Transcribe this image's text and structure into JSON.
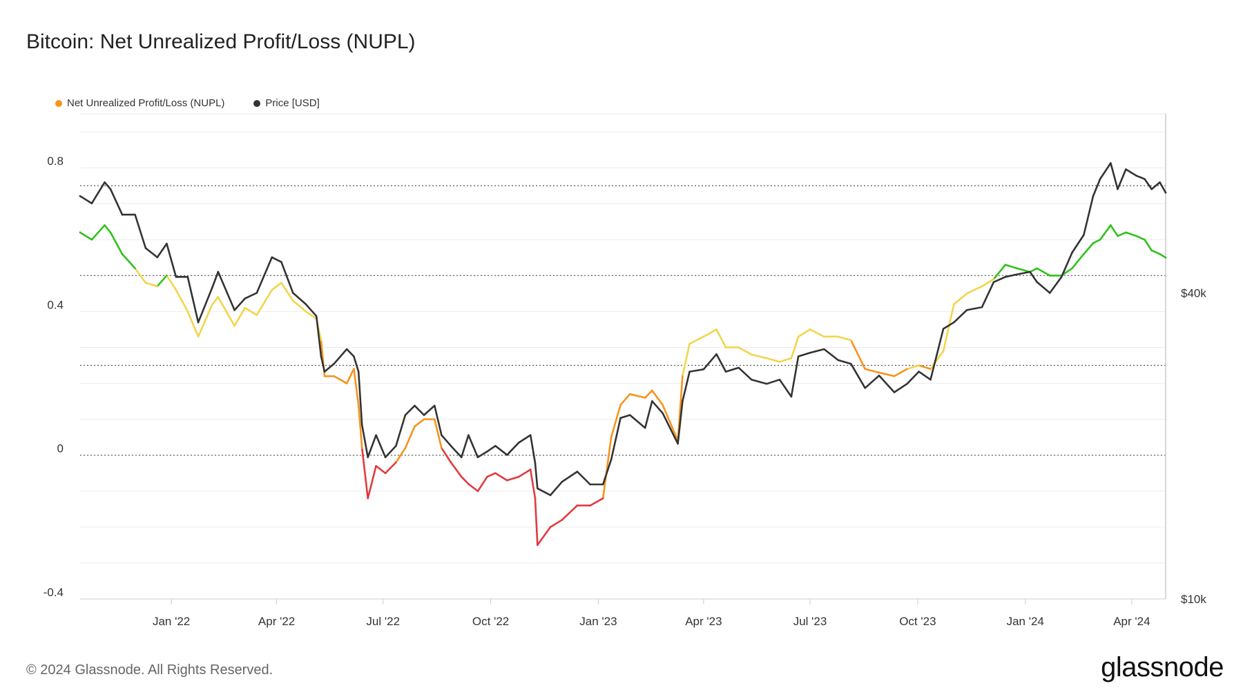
{
  "title": "Bitcoin: Net Unrealized Profit/Loss (NUPL)",
  "legend": [
    {
      "label": "Net Unrealized Profit/Loss (NUPL)",
      "color": "#f7931a"
    },
    {
      "label": "Price [USD]",
      "color": "#333333"
    }
  ],
  "footer": {
    "copyright": "© 2024 Glassnode. All Rights Reserved.",
    "brand": "glassnode"
  },
  "chart_data": {
    "type": "line",
    "title": "Bitcoin: Net Unrealized Profit/Loss (NUPL)",
    "x_tick_labels": [
      "Jan '22",
      "Apr '22",
      "Jul '22",
      "Oct '22",
      "Jan '23",
      "Apr '23",
      "Jul '23",
      "Oct '23",
      "Jan '24",
      "Apr '24"
    ],
    "x_tick_dates": [
      "2022-01-01",
      "2022-04-01",
      "2022-07-01",
      "2022-10-01",
      "2023-01-01",
      "2023-04-01",
      "2023-07-01",
      "2023-10-01",
      "2024-01-01",
      "2024-04-01"
    ],
    "xlim": [
      "2021-10-15",
      "2024-04-30"
    ],
    "y_left": {
      "ylim": [
        -0.4,
        0.95
      ],
      "ticks": [
        -0.4,
        0,
        0.4,
        0.8
      ],
      "tick_labels": [
        "-0.4",
        "0",
        "0.4",
        "0.8"
      ]
    },
    "y_right": {
      "scale": "log",
      "ylim": [
        10000,
        90000
      ],
      "ticks": [
        10000,
        40000
      ],
      "tick_labels": [
        "$10k",
        "$40k"
      ]
    },
    "zone_colors": {
      "capitulation": "#e03a3e",
      "hope_fear": "#f7931a",
      "optimism_anxiety": "#f2d54a",
      "belief_denial": "#2fc21a",
      "price": "#333333"
    },
    "zone_thresholds": [
      0,
      0.25,
      0.5
    ],
    "series": [
      {
        "name": "Net Unrealized Profit/Loss (NUPL)",
        "axis": "left",
        "x": [
          "2021-10-15",
          "2021-10-25",
          "2021-11-05",
          "2021-11-10",
          "2021-11-20",
          "2021-12-01",
          "2021-12-10",
          "2021-12-20",
          "2021-12-28",
          "2022-01-05",
          "2022-01-15",
          "2022-01-24",
          "2022-02-05",
          "2022-02-10",
          "2022-02-24",
          "2022-03-05",
          "2022-03-15",
          "2022-03-28",
          "2022-04-05",
          "2022-04-15",
          "2022-04-26",
          "2022-05-05",
          "2022-05-09",
          "2022-05-12",
          "2022-05-20",
          "2022-05-31",
          "2022-06-06",
          "2022-06-10",
          "2022-06-13",
          "2022-06-18",
          "2022-06-25",
          "2022-07-03",
          "2022-07-12",
          "2022-07-20",
          "2022-07-28",
          "2022-08-05",
          "2022-08-14",
          "2022-08-20",
          "2022-08-28",
          "2022-09-06",
          "2022-09-12",
          "2022-09-20",
          "2022-09-28",
          "2022-10-05",
          "2022-10-15",
          "2022-10-25",
          "2022-11-04",
          "2022-11-08",
          "2022-11-10",
          "2022-11-21",
          "2022-12-01",
          "2022-12-14",
          "2022-12-25",
          "2023-01-05",
          "2023-01-12",
          "2023-01-20",
          "2023-01-28",
          "2023-02-10",
          "2023-02-16",
          "2023-02-25",
          "2023-03-10",
          "2023-03-14",
          "2023-03-20",
          "2023-04-01",
          "2023-04-12",
          "2023-04-20",
          "2023-05-01",
          "2023-05-12",
          "2023-05-25",
          "2023-06-05",
          "2023-06-15",
          "2023-06-21",
          "2023-07-01",
          "2023-07-13",
          "2023-07-25",
          "2023-08-05",
          "2023-08-17",
          "2023-08-29",
          "2023-09-11",
          "2023-09-22",
          "2023-10-02",
          "2023-10-12",
          "2023-10-23",
          "2023-11-01",
          "2023-11-12",
          "2023-11-25",
          "2023-12-05",
          "2023-12-15",
          "2023-12-25",
          "2024-01-05",
          "2024-01-11",
          "2024-01-22",
          "2024-02-01",
          "2024-02-10",
          "2024-02-20",
          "2024-02-28",
          "2024-03-05",
          "2024-03-14",
          "2024-03-20",
          "2024-03-27",
          "2024-04-05",
          "2024-04-12",
          "2024-04-18",
          "2024-04-25",
          "2024-04-30"
        ],
        "y": [
          0.62,
          0.6,
          0.64,
          0.62,
          0.56,
          0.52,
          0.48,
          0.47,
          0.5,
          0.46,
          0.4,
          0.33,
          0.42,
          0.44,
          0.36,
          0.41,
          0.39,
          0.46,
          0.48,
          0.43,
          0.4,
          0.38,
          0.32,
          0.22,
          0.22,
          0.2,
          0.24,
          0.14,
          0.02,
          -0.12,
          -0.03,
          -0.05,
          -0.02,
          0.02,
          0.08,
          0.1,
          0.1,
          0.02,
          -0.02,
          -0.06,
          -0.08,
          -0.1,
          -0.06,
          -0.05,
          -0.07,
          -0.06,
          -0.04,
          -0.12,
          -0.25,
          -0.2,
          -0.18,
          -0.14,
          -0.14,
          -0.12,
          0.05,
          0.14,
          0.17,
          0.16,
          0.18,
          0.14,
          0.04,
          0.22,
          0.31,
          0.33,
          0.35,
          0.3,
          0.3,
          0.28,
          0.27,
          0.26,
          0.27,
          0.33,
          0.35,
          0.33,
          0.33,
          0.32,
          0.24,
          0.23,
          0.22,
          0.24,
          0.25,
          0.24,
          0.29,
          0.42,
          0.45,
          0.47,
          0.49,
          0.53,
          0.52,
          0.51,
          0.52,
          0.5,
          0.5,
          0.52,
          0.56,
          0.59,
          0.6,
          0.64,
          0.61,
          0.62,
          0.61,
          0.6,
          0.57,
          0.56,
          0.55
        ]
      },
      {
        "name": "Price [USD]",
        "axis": "right",
        "x": [
          "2021-10-15",
          "2021-10-25",
          "2021-11-05",
          "2021-11-10",
          "2021-11-20",
          "2021-12-01",
          "2021-12-10",
          "2021-12-20",
          "2021-12-28",
          "2022-01-05",
          "2022-01-15",
          "2022-01-24",
          "2022-02-05",
          "2022-02-10",
          "2022-02-24",
          "2022-03-05",
          "2022-03-15",
          "2022-03-28",
          "2022-04-05",
          "2022-04-15",
          "2022-04-26",
          "2022-05-05",
          "2022-05-09",
          "2022-05-12",
          "2022-05-20",
          "2022-05-31",
          "2022-06-06",
          "2022-06-10",
          "2022-06-13",
          "2022-06-18",
          "2022-06-25",
          "2022-07-03",
          "2022-07-12",
          "2022-07-20",
          "2022-07-28",
          "2022-08-05",
          "2022-08-14",
          "2022-08-20",
          "2022-08-28",
          "2022-09-06",
          "2022-09-12",
          "2022-09-20",
          "2022-09-28",
          "2022-10-05",
          "2022-10-15",
          "2022-10-25",
          "2022-11-04",
          "2022-11-08",
          "2022-11-10",
          "2022-11-21",
          "2022-12-01",
          "2022-12-14",
          "2022-12-25",
          "2023-01-05",
          "2023-01-12",
          "2023-01-20",
          "2023-01-28",
          "2023-02-10",
          "2023-02-16",
          "2023-02-25",
          "2023-03-10",
          "2023-03-14",
          "2023-03-20",
          "2023-04-01",
          "2023-04-12",
          "2023-04-20",
          "2023-05-01",
          "2023-05-12",
          "2023-05-25",
          "2023-06-05",
          "2023-06-15",
          "2023-06-21",
          "2023-07-01",
          "2023-07-13",
          "2023-07-25",
          "2023-08-05",
          "2023-08-17",
          "2023-08-29",
          "2023-09-11",
          "2023-09-22",
          "2023-10-02",
          "2023-10-12",
          "2023-10-23",
          "2023-11-01",
          "2023-11-12",
          "2023-11-25",
          "2023-12-05",
          "2023-12-15",
          "2023-12-25",
          "2024-01-05",
          "2024-01-11",
          "2024-01-22",
          "2024-02-01",
          "2024-02-10",
          "2024-02-20",
          "2024-02-28",
          "2024-03-05",
          "2024-03-14",
          "2024-03-20",
          "2024-03-27",
          "2024-04-05",
          "2024-04-12",
          "2024-04-18",
          "2024-04-25",
          "2024-04-30"
        ],
        "y": [
          62000,
          60000,
          66000,
          64000,
          57000,
          57000,
          49000,
          47000,
          50000,
          43000,
          43000,
          35000,
          41000,
          44000,
          37000,
          39000,
          40000,
          47000,
          46000,
          40000,
          38000,
          36000,
          30000,
          28000,
          29000,
          31000,
          30000,
          28000,
          22000,
          19000,
          21000,
          19000,
          20000,
          23000,
          24000,
          23000,
          24000,
          21000,
          20000,
          19000,
          21000,
          19000,
          19500,
          20000,
          19200,
          20300,
          21000,
          18500,
          16500,
          16000,
          17000,
          17800,
          16800,
          16800,
          18800,
          22700,
          23000,
          21700,
          24500,
          23200,
          20200,
          24500,
          28000,
          28300,
          30300,
          28000,
          28500,
          27000,
          26500,
          27000,
          25000,
          30000,
          30500,
          31000,
          29500,
          29000,
          26000,
          27500,
          25500,
          26500,
          28000,
          27000,
          34000,
          35000,
          37000,
          37500,
          42000,
          43000,
          43500,
          44000,
          42000,
          40000,
          43000,
          48000,
          52000,
          62000,
          67000,
          72000,
          64000,
          70000,
          68000,
          67000,
          64000,
          66000,
          63000
        ]
      }
    ]
  }
}
